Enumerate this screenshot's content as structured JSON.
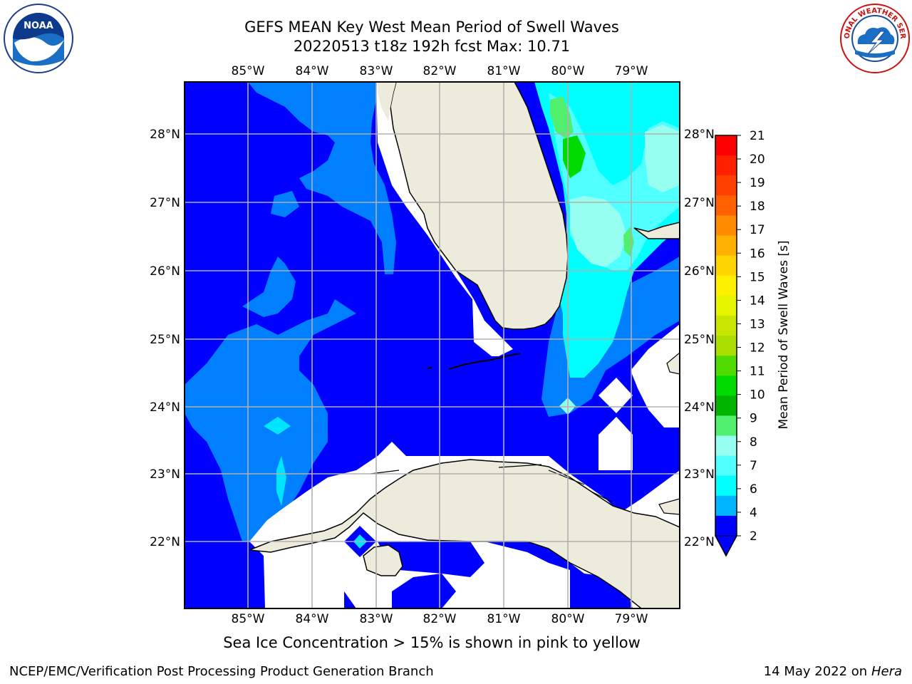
{
  "title_line1": "GEFS MEAN Key West Mean Period of Swell Waves",
  "title_line2": "20220513 t18z 192h fcst   Max: 10.71",
  "logos": {
    "left": "noaa-logo",
    "left_text": "NOAA",
    "right": "national-weather-service-logo",
    "right_text": "NATIONAL WEATHER SERVICE"
  },
  "map": {
    "lon_labels": [
      "85°W",
      "84°W",
      "83°W",
      "82°W",
      "81°W",
      "80°W",
      "79°W"
    ],
    "lat_labels": [
      "28°N",
      "27°N",
      "26°N",
      "25°N",
      "24°N",
      "23°N",
      "22°N"
    ],
    "colors": {
      "land": "#ecebdc",
      "no_data": "#ffffff",
      "grid": "#b0b0b0"
    }
  },
  "colorbar": {
    "label": "Mean Period of Swell Waves [s]",
    "ticks": [
      "21",
      "20",
      "19",
      "18",
      "17",
      "16",
      "15",
      "14",
      "13",
      "12",
      "11",
      "10",
      "9",
      "8",
      "7",
      "6",
      "4",
      "2"
    ],
    "colors": [
      "#ff0000",
      "#ff2000",
      "#ff4000",
      "#ff6000",
      "#ff8c00",
      "#ffb000",
      "#ffd500",
      "#fff000",
      "#e6f500",
      "#c8e600",
      "#aadd00",
      "#50dc00",
      "#00dc00",
      "#00b400",
      "#50f06e",
      "#96fff0",
      "#50ffff",
      "#00ffff",
      "#00b4ff",
      "#0000ff"
    ]
  },
  "note": "Sea Ice Concentration > 15% is shown in pink to yellow",
  "credit": "NCEP/EMC/Verification Post Processing Product Generation Branch",
  "date": "14 May 2022 on",
  "machine": "Hera"
}
